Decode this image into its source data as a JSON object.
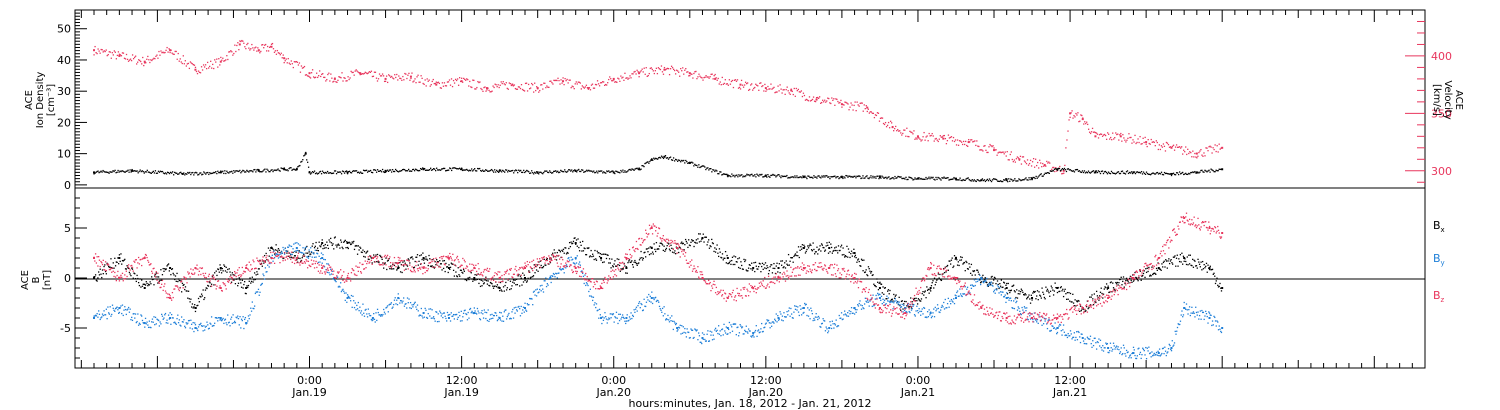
{
  "colors": {
    "pink": "#e8365d",
    "blue": "#1e7fd8",
    "black": "#000000"
  },
  "chart_data": [
    {
      "type": "scatter",
      "panel": "top",
      "ylabel_left": [
        "ACE",
        "Ion Density",
        "[cm⁻³]"
      ],
      "ylabel_right": [
        "ACE",
        "Velocity",
        "[km/s]"
      ],
      "ylim_left": [
        -1,
        56
      ],
      "yticks_left": [
        0,
        10,
        20,
        30,
        40,
        50
      ],
      "ylim_right": [
        285,
        440
      ],
      "yticks_right": [
        300,
        350,
        400
      ],
      "series": [
        {
          "axis": "left",
          "color": "black",
          "points": [
            [
              -17,
              4
            ],
            [
              -14,
              4.5
            ],
            [
              -10,
              3.5
            ],
            [
              -7,
              4
            ],
            [
              -4,
              4.5
            ],
            [
              -2,
              5
            ],
            [
              -1,
              5
            ],
            [
              -0.3,
              10
            ],
            [
              0,
              4
            ],
            [
              3,
              4
            ],
            [
              6,
              4.5
            ],
            [
              9,
              5
            ],
            [
              12,
              5
            ],
            [
              15,
              4.5
            ],
            [
              18,
              4
            ],
            [
              21,
              4.5
            ],
            [
              24,
              4
            ],
            [
              26,
              5
            ],
            [
              27,
              8
            ],
            [
              28,
              9
            ],
            [
              30,
              7
            ],
            [
              33,
              3
            ],
            [
              36,
              3
            ],
            [
              39,
              2.5
            ],
            [
              42,
              2.5
            ],
            [
              45,
              2.5
            ],
            [
              48,
              2
            ],
            [
              51,
              2
            ],
            [
              53,
              1.5
            ],
            [
              55,
              1.5
            ],
            [
              57,
              2
            ],
            [
              59,
              5
            ],
            [
              62,
              4
            ],
            [
              65,
              4
            ],
            [
              68,
              3.5
            ],
            [
              70,
              4
            ],
            [
              72,
              5
            ]
          ]
        },
        {
          "axis": "right",
          "color": "pink",
          "points": [
            [
              -17,
              405
            ],
            [
              -15,
              400
            ],
            [
              -13,
              395
            ],
            [
              -11,
              405
            ],
            [
              -9,
              388
            ],
            [
              -7,
              395
            ],
            [
              -5.5,
              410
            ],
            [
              -4,
              405
            ],
            [
              -3,
              408
            ],
            [
              -2,
              398
            ],
            [
              0,
              385
            ],
            [
              2,
              380
            ],
            [
              4,
              385
            ],
            [
              6,
              380
            ],
            [
              8,
              382
            ],
            [
              10,
              375
            ],
            [
              12,
              378
            ],
            [
              14,
              372
            ],
            [
              16,
              375
            ],
            [
              18,
              372
            ],
            [
              20,
              378
            ],
            [
              22,
              372
            ],
            [
              24,
              380
            ],
            [
              26,
              385
            ],
            [
              28,
              388
            ],
            [
              30,
              385
            ],
            [
              32,
              380
            ],
            [
              34,
              375
            ],
            [
              36,
              372
            ],
            [
              38,
              370
            ],
            [
              40,
              362
            ],
            [
              42,
              358
            ],
            [
              44,
              355
            ],
            [
              46,
              338
            ],
            [
              48,
              330
            ],
            [
              50,
              328
            ],
            [
              52,
              325
            ],
            [
              54,
              318
            ],
            [
              56,
              310
            ],
            [
              58,
              305
            ],
            [
              59.5,
              300
            ],
            [
              60,
              350
            ],
            [
              61,
              345
            ],
            [
              62,
              330
            ],
            [
              64,
              330
            ],
            [
              66,
              325
            ],
            [
              68,
              320
            ],
            [
              70,
              315
            ],
            [
              72,
              320
            ]
          ]
        }
      ]
    },
    {
      "type": "scatter",
      "panel": "bottom",
      "ylabel": [
        "ACE",
        "B",
        "[nT]"
      ],
      "ylim": [
        -9,
        9
      ],
      "yticks": [
        -5,
        0,
        5
      ],
      "legend": [
        {
          "label": "B",
          "subscript": "x",
          "color": "black"
        },
        {
          "label": "B",
          "subscript": "y",
          "color": "blue"
        },
        {
          "label": "B",
          "subscript": "z",
          "color": "pink"
        }
      ],
      "series": [
        {
          "name": "Bx",
          "color": "black",
          "points": [
            [
              -17,
              0
            ],
            [
              -15,
              2
            ],
            [
              -13,
              -1
            ],
            [
              -11,
              1
            ],
            [
              -9,
              -3
            ],
            [
              -7,
              1
            ],
            [
              -5,
              -1
            ],
            [
              -3,
              3
            ],
            [
              -1,
              2
            ],
            [
              1,
              3.5
            ],
            [
              3,
              3.5
            ],
            [
              5,
              2
            ],
            [
              7,
              1
            ],
            [
              9,
              2
            ],
            [
              11,
              1
            ],
            [
              13,
              0
            ],
            [
              15,
              -1
            ],
            [
              17,
              0
            ],
            [
              19,
              2
            ],
            [
              21,
              3.5
            ],
            [
              23,
              2
            ],
            [
              25,
              1
            ],
            [
              27,
              3
            ],
            [
              29,
              3
            ],
            [
              31,
              4
            ],
            [
              33,
              2
            ],
            [
              35,
              1
            ],
            [
              37,
              1
            ],
            [
              39,
              3
            ],
            [
              41,
              3
            ],
            [
              43,
              2.5
            ],
            [
              45,
              -1
            ],
            [
              47,
              -3
            ],
            [
              49,
              -1
            ],
            [
              51,
              2
            ],
            [
              53,
              0
            ],
            [
              55,
              -1
            ],
            [
              57,
              -2
            ],
            [
              59,
              -1
            ],
            [
              61,
              -3
            ],
            [
              63,
              -1
            ],
            [
              65,
              0
            ],
            [
              67,
              1
            ],
            [
              69,
              2
            ],
            [
              71,
              1
            ],
            [
              72,
              -1
            ]
          ]
        },
        {
          "name": "By",
          "color": "blue",
          "points": [
            [
              -17,
              -4
            ],
            [
              -15,
              -3
            ],
            [
              -13,
              -4.5
            ],
            [
              -11,
              -4
            ],
            [
              -9,
              -5
            ],
            [
              -7,
              -4
            ],
            [
              -5,
              -4.5
            ],
            [
              -3,
              2
            ],
            [
              -1,
              3
            ],
            [
              1,
              2
            ],
            [
              3,
              -2
            ],
            [
              5,
              -4
            ],
            [
              7,
              -2
            ],
            [
              9,
              -3.5
            ],
            [
              11,
              -4
            ],
            [
              13,
              -3.5
            ],
            [
              15,
              -4
            ],
            [
              17,
              -3
            ],
            [
              19,
              0
            ],
            [
              21,
              2
            ],
            [
              23,
              -4
            ],
            [
              25,
              -4
            ],
            [
              27,
              -2
            ],
            [
              29,
              -5
            ],
            [
              31,
              -6
            ],
            [
              33,
              -5
            ],
            [
              35,
              -5.5
            ],
            [
              37,
              -4
            ],
            [
              39,
              -3
            ],
            [
              41,
              -5
            ],
            [
              43,
              -3
            ],
            [
              45,
              -2
            ],
            [
              47,
              -3
            ],
            [
              49,
              -3.5
            ],
            [
              51,
              -2
            ],
            [
              53,
              0
            ],
            [
              55,
              -2
            ],
            [
              57,
              -4
            ],
            [
              59,
              -5
            ],
            [
              61,
              -6
            ],
            [
              63,
              -7
            ],
            [
              65,
              -7.5
            ],
            [
              67,
              -7.5
            ],
            [
              68,
              -7
            ],
            [
              69,
              -3
            ],
            [
              71,
              -4
            ],
            [
              72,
              -5
            ]
          ]
        },
        {
          "name": "Bz",
          "color": "pink",
          "points": [
            [
              -17,
              2
            ],
            [
              -15,
              0
            ],
            [
              -13,
              2
            ],
            [
              -11,
              -2
            ],
            [
              -9,
              1
            ],
            [
              -7,
              -1
            ],
            [
              -5,
              1
            ],
            [
              -3,
              2
            ],
            [
              -1,
              2
            ],
            [
              1,
              1
            ],
            [
              3,
              0
            ],
            [
              5,
              2
            ],
            [
              7,
              1.5
            ],
            [
              9,
              1
            ],
            [
              11,
              2
            ],
            [
              13,
              1
            ],
            [
              15,
              0
            ],
            [
              17,
              1
            ],
            [
              19,
              2
            ],
            [
              21,
              1
            ],
            [
              23,
              -1
            ],
            [
              25,
              2
            ],
            [
              27,
              5
            ],
            [
              29,
              3
            ],
            [
              31,
              0
            ],
            [
              33,
              -2
            ],
            [
              35,
              -1
            ],
            [
              37,
              0
            ],
            [
              39,
              1
            ],
            [
              41,
              1
            ],
            [
              43,
              0
            ],
            [
              45,
              -3
            ],
            [
              47,
              -3.5
            ],
            [
              49,
              1
            ],
            [
              51,
              0
            ],
            [
              53,
              -3
            ],
            [
              55,
              -4
            ],
            [
              57,
              -4
            ],
            [
              59,
              -4
            ],
            [
              61,
              -3
            ],
            [
              63,
              -2
            ],
            [
              65,
              0
            ],
            [
              67,
              2
            ],
            [
              69,
              6
            ],
            [
              71,
              5
            ],
            [
              72,
              4.5
            ]
          ]
        }
      ]
    }
  ],
  "x_axis": {
    "xlim": [
      -18.5,
      88
    ],
    "ticks": [
      {
        "hour": 0,
        "time": "0:00",
        "date": "Jan.19"
      },
      {
        "hour": 12,
        "time": "12:00",
        "date": "Jan.19"
      },
      {
        "hour": 24,
        "time": "0:00",
        "date": "Jan.20"
      },
      {
        "hour": 36,
        "time": "12:00",
        "date": "Jan.20"
      },
      {
        "hour": 48,
        "time": "0:00",
        "date": "Jan.21"
      },
      {
        "hour": 60,
        "time": "12:00",
        "date": "Jan.21"
      }
    ],
    "label": "hours:minutes, Jan. 18, 2012 - Jan. 21, 2012"
  }
}
